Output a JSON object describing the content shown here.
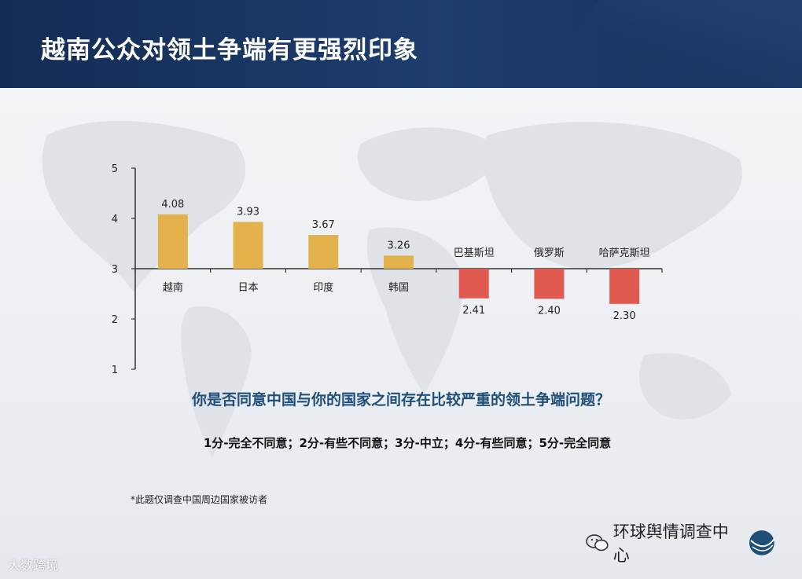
{
  "header": {
    "title": "越南公众对领土争端有更强烈印象"
  },
  "chart_data": {
    "type": "bar",
    "baseline": 3,
    "ylim": [
      1,
      5
    ],
    "yticks": [
      1,
      2,
      3,
      4,
      5
    ],
    "categories": [
      "越南",
      "日本",
      "印度",
      "韩国",
      "巴基斯坦",
      "俄罗斯",
      "哈萨克斯坦"
    ],
    "values": [
      4.08,
      3.93,
      3.67,
      3.26,
      2.41,
      2.4,
      2.3
    ],
    "value_labels": [
      "4.08",
      "3.93",
      "3.67",
      "3.26",
      "2.41",
      "2.40",
      "2.30"
    ],
    "colors": {
      "above": "#e3b24c",
      "below": "#e05a50"
    },
    "grid": false
  },
  "question": "你是否同意中国与你的国家之间存在比较严重的领土争端问题？",
  "scale_note": "1分-完全不同意；2分-有些不同意；3分-中立；4分-有些同意；5分-完全同意",
  "footnote": "*此题仅调查中国周边国家被访者",
  "watermarks": {
    "bottom_left": "大数跨境",
    "bottom_right": "环球舆情调查中心",
    "logo_text": "环球 舆情"
  }
}
